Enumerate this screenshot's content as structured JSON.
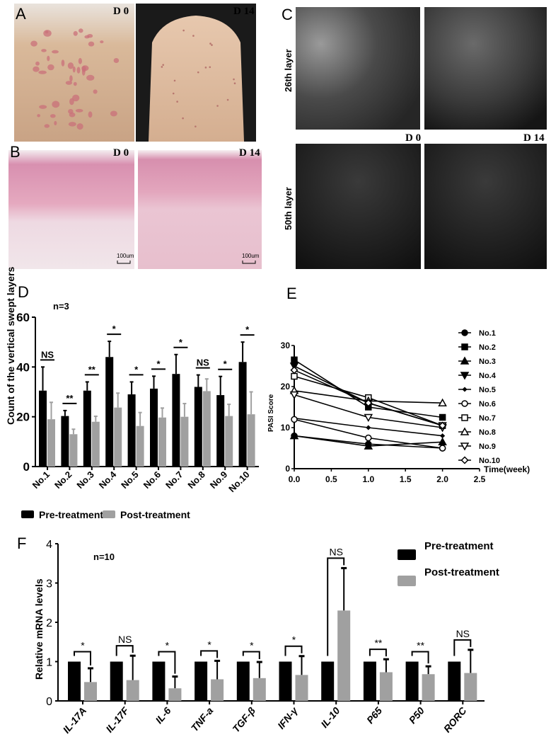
{
  "panels": {
    "A": {
      "label": "A",
      "left_caption": "D 0",
      "right_caption": "D 14"
    },
    "B": {
      "label": "B",
      "left_caption": "D 0",
      "right_caption": "D 14",
      "scale_bar": "100um"
    },
    "C": {
      "label": "C",
      "col_left": "D 0",
      "col_right": "D 14",
      "row_top": "26th layer",
      "row_bottom": "50th layer"
    },
    "D": {
      "label": "D"
    },
    "E": {
      "label": "E"
    },
    "F": {
      "label": "F"
    }
  },
  "colors": {
    "pre": "#000000",
    "post": "#a0a0a0"
  },
  "chart_data": [
    {
      "panel": "D",
      "type": "bar",
      "note_text": "n=3",
      "ylabel": "Count of the vertical swept layers",
      "ylim": [
        0,
        60
      ],
      "yticks": [
        0,
        20,
        40,
        60
      ],
      "categories": [
        "No.1",
        "No.2",
        "No.3",
        "No.4",
        "No.5",
        "No.6",
        "No.7",
        "No.8",
        "No.9",
        "No.10"
      ],
      "series": [
        {
          "name": "Pre-treatment",
          "values": [
            30.5,
            20.3,
            30.5,
            44,
            29,
            31.3,
            37.2,
            32,
            28.7,
            42
          ],
          "error_upper": [
            40,
            22.5,
            34,
            50.3,
            34,
            36.3,
            45,
            36.8,
            36.2,
            50
          ]
        },
        {
          "name": "Post-treatment",
          "values": [
            19,
            13,
            18,
            23.7,
            16.3,
            19.7,
            20,
            30.3,
            20.3,
            21
          ],
          "error_upper": [
            25.8,
            15,
            20.2,
            29.5,
            21.7,
            23.5,
            25.3,
            35.2,
            25,
            30
          ]
        }
      ],
      "significance": [
        "NS",
        "**",
        "**",
        "*",
        "*",
        "*",
        "*",
        "NS",
        "*",
        "*"
      ],
      "legend": [
        "Pre-treatment",
        "Post-treatment"
      ],
      "legend_position": "bottom"
    },
    {
      "panel": "E",
      "type": "line",
      "ylabel": "PASI Score",
      "xlabel": "Time(week)",
      "xlim": [
        0,
        2.5
      ],
      "ylim": [
        0,
        30
      ],
      "xticks": [
        "0.0",
        "0.5",
        "1.0",
        "1.5",
        "2.0",
        "2.5"
      ],
      "yticks": [
        0,
        10,
        20,
        30
      ],
      "x": [
        0,
        1,
        2
      ],
      "series": [
        {
          "name": "No.1",
          "marker": "circle-filled",
          "values": [
            8,
            6,
            5
          ]
        },
        {
          "name": "No.2",
          "marker": "square-filled",
          "values": [
            26.5,
            15,
            12.5
          ]
        },
        {
          "name": "No.3",
          "marker": "triangle-up-filled",
          "values": [
            8,
            5.5,
            6.5
          ]
        },
        {
          "name": "No.4",
          "marker": "triangle-down-filled",
          "values": [
            25,
            16,
            10.5
          ]
        },
        {
          "name": "No.5",
          "marker": "diamond-small",
          "values": [
            12.3,
            10,
            8
          ]
        },
        {
          "name": "No.6",
          "marker": "circle-open",
          "values": [
            12,
            7.5,
            5
          ]
        },
        {
          "name": "No.7",
          "marker": "square-open",
          "values": [
            22.5,
            17.3,
            10.5
          ]
        },
        {
          "name": "No.8",
          "marker": "triangle-up-open",
          "values": [
            19,
            16.5,
            16
          ]
        },
        {
          "name": "No.9",
          "marker": "triangle-down-open",
          "values": [
            18,
            12.5,
            10
          ]
        },
        {
          "name": "No.10",
          "marker": "diamond-open",
          "values": [
            24,
            16,
            10.5
          ]
        }
      ],
      "legend_position": "right"
    },
    {
      "panel": "F",
      "type": "bar",
      "note_text": "n=10",
      "ylabel": "Relative mRNA levels",
      "ylim": [
        0,
        4
      ],
      "yticks": [
        0,
        1,
        2,
        3,
        4
      ],
      "categories": [
        "IL-17A",
        "IL-17F",
        "IL-6",
        "TNF-a",
        "TGF-β",
        "IFN-γ",
        "IL-10",
        "P65",
        "P50",
        "RORC"
      ],
      "series": [
        {
          "name": "Pre-treatment",
          "values": [
            1,
            1,
            1,
            1,
            1,
            1,
            1,
            1,
            1,
            1
          ]
        },
        {
          "name": "Post-treatment",
          "values": [
            0.48,
            0.53,
            0.32,
            0.55,
            0.58,
            0.66,
            2.3,
            0.73,
            0.68,
            0.71
          ],
          "error_upper": [
            0.83,
            1.15,
            0.62,
            1.02,
            0.99,
            1.14,
            3.38,
            1.06,
            0.88,
            1.3
          ]
        }
      ],
      "significance": [
        "*",
        "NS",
        "*",
        "*",
        "*",
        "*",
        "NS",
        "**",
        "**",
        "NS"
      ],
      "legend": [
        "Pre-treatment",
        "Post-treatment"
      ],
      "legend_position": "top-right"
    }
  ]
}
